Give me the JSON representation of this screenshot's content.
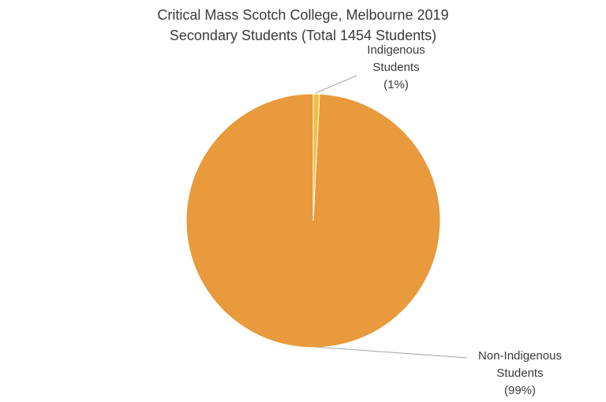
{
  "chart_data": {
    "type": "pie",
    "title": "Critical Mass Scotch College, Melbourne 2019",
    "subtitle": "Secondary Students (Total 1454 Students)",
    "slices": [
      {
        "name": "Indigenous Students",
        "label_lines": [
          "Indigenous",
          "Students",
          "(1%)"
        ],
        "percent_label": "1%",
        "value": 0.8,
        "color": "#f0c040",
        "edge": "#ffffff"
      },
      {
        "name": "Non-Indigenous Students",
        "label_lines": [
          "Non-Indigenous",
          "Students",
          "(99%)"
        ],
        "percent_label": "99%",
        "value": 99.2,
        "color": "#e89a3c",
        "edge": "#ffffff"
      }
    ],
    "legend": "none"
  },
  "colors": {
    "text": "#3a3a3a",
    "leader_line": "#a6a6a6"
  }
}
